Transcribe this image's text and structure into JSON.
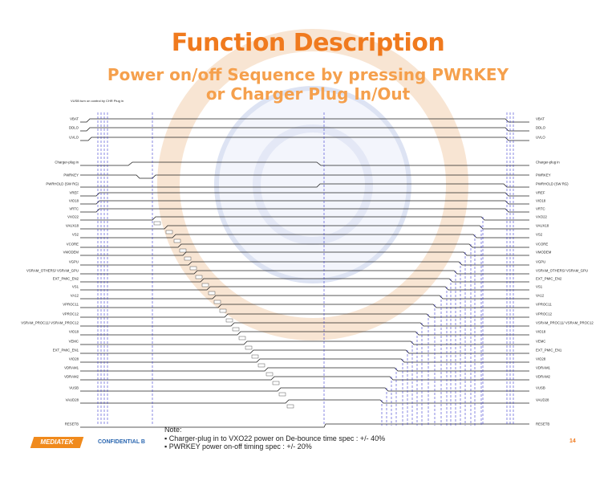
{
  "slide": {
    "title": "Function Description",
    "subtitle_line1": "Power on/off  Sequence by pressing PWRKEY",
    "subtitle_line2": "or Charger Plug In/Out",
    "top_note": "VUSB turn on control by CHR Plug in",
    "page_number": "14",
    "confidential": "CONFIDENTIAL B",
    "logo_text": "MEDIATEK"
  },
  "notes": {
    "heading": "Note:",
    "items": [
      "Charger-plug in to VXO22 power on De-bounce time spec : +/- 40%",
      "PWRKEY power on-off timing spec : +/- 20%"
    ]
  },
  "signals_left": [
    "VBAT",
    "DDLO",
    "UVLO",
    "Charger-plug in",
    "PWRKEY",
    "PWRHOLD (SW RG)",
    "VREF",
    "VIO18",
    "VRTC",
    "VXO22",
    "VAUX18",
    "VS2",
    "VCORE",
    "VMODEM",
    "VGPU",
    "VSRAM_OTHERS/ VSRAM_GPU",
    "EXT_PMIC_EN2",
    "VS1",
    "VA12",
    "VPROC11",
    "VPROC12",
    "VSRAM_PROC11/ VSRAM_PROC12",
    "VIO18",
    "VEMC",
    "EXT_PMIC_EN1",
    "VIO28",
    "VDRAM1",
    "VDRAM2",
    "VUSB",
    "VAUD28",
    "RESETB"
  ],
  "signals_right": [
    "VBAT",
    "DDLO",
    "UVLO",
    "Charger-plug in",
    "PWRKEY",
    "PWRHOLD (SW RG)",
    "VREF",
    "VIO18",
    "VRTC",
    "VXO22",
    "VAUX18",
    "VS2",
    "VCORE",
    "VMODEM",
    "VGPU",
    "VSRAM_OTHERS/ VSRAM_GPU",
    "EXT_PMIC_EN2",
    "VS1",
    "VA12",
    "VPROC11",
    "VPROC12",
    "VSRAM_PROC11/ VSRAM_PROC12",
    "VIO18",
    "VEMC",
    "EXT_PMIC_EN1",
    "VIO28",
    "VDRAM1",
    "VDRAM2",
    "VUSB",
    "VAUD28",
    "RESETB"
  ],
  "colors": {
    "accent": "#f07a1e",
    "timing_dash": "#3a3ad0",
    "confidential": "#2a66b0"
  }
}
